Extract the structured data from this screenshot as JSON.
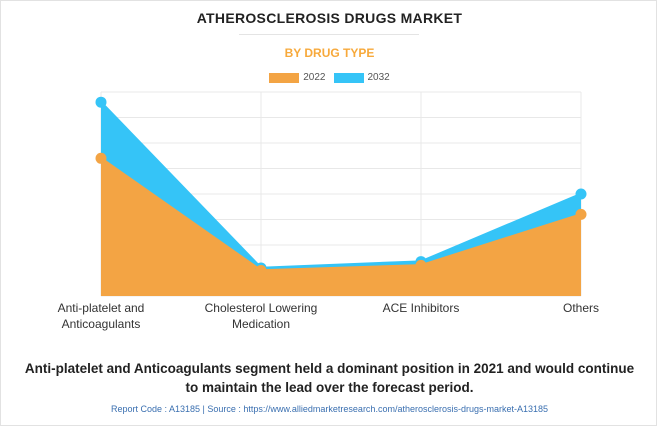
{
  "header": {
    "title": "ATHEROSCLEROSIS DRUGS MARKET",
    "subtitle": "BY DRUG TYPE"
  },
  "chart_data": {
    "type": "area",
    "categories": [
      [
        "Anti-platelet and",
        "Anticoagulants"
      ],
      [
        "Cholesterol Lowering",
        "Medication"
      ],
      [
        "ACE Inhibitors"
      ],
      [
        "Others"
      ]
    ],
    "series": [
      {
        "name": "2022",
        "color": "#f3a444",
        "values": [
          54,
          10,
          12,
          32
        ]
      },
      {
        "name": "2032",
        "color": "#35c4f7",
        "values": [
          76,
          11,
          13.5,
          40
        ]
      }
    ],
    "ylim": [
      0,
      80
    ],
    "grid": true,
    "legend": "top-center"
  },
  "caption": "Anti-platelet and Anticoagulants segment held a dominant position in 2021 and would continue to maintain the lead over the forecast period.",
  "footer": "Report Code : A13185  |  Source : https://www.alliedmarketresearch.com/atherosclerosis-drugs-market-A13185"
}
